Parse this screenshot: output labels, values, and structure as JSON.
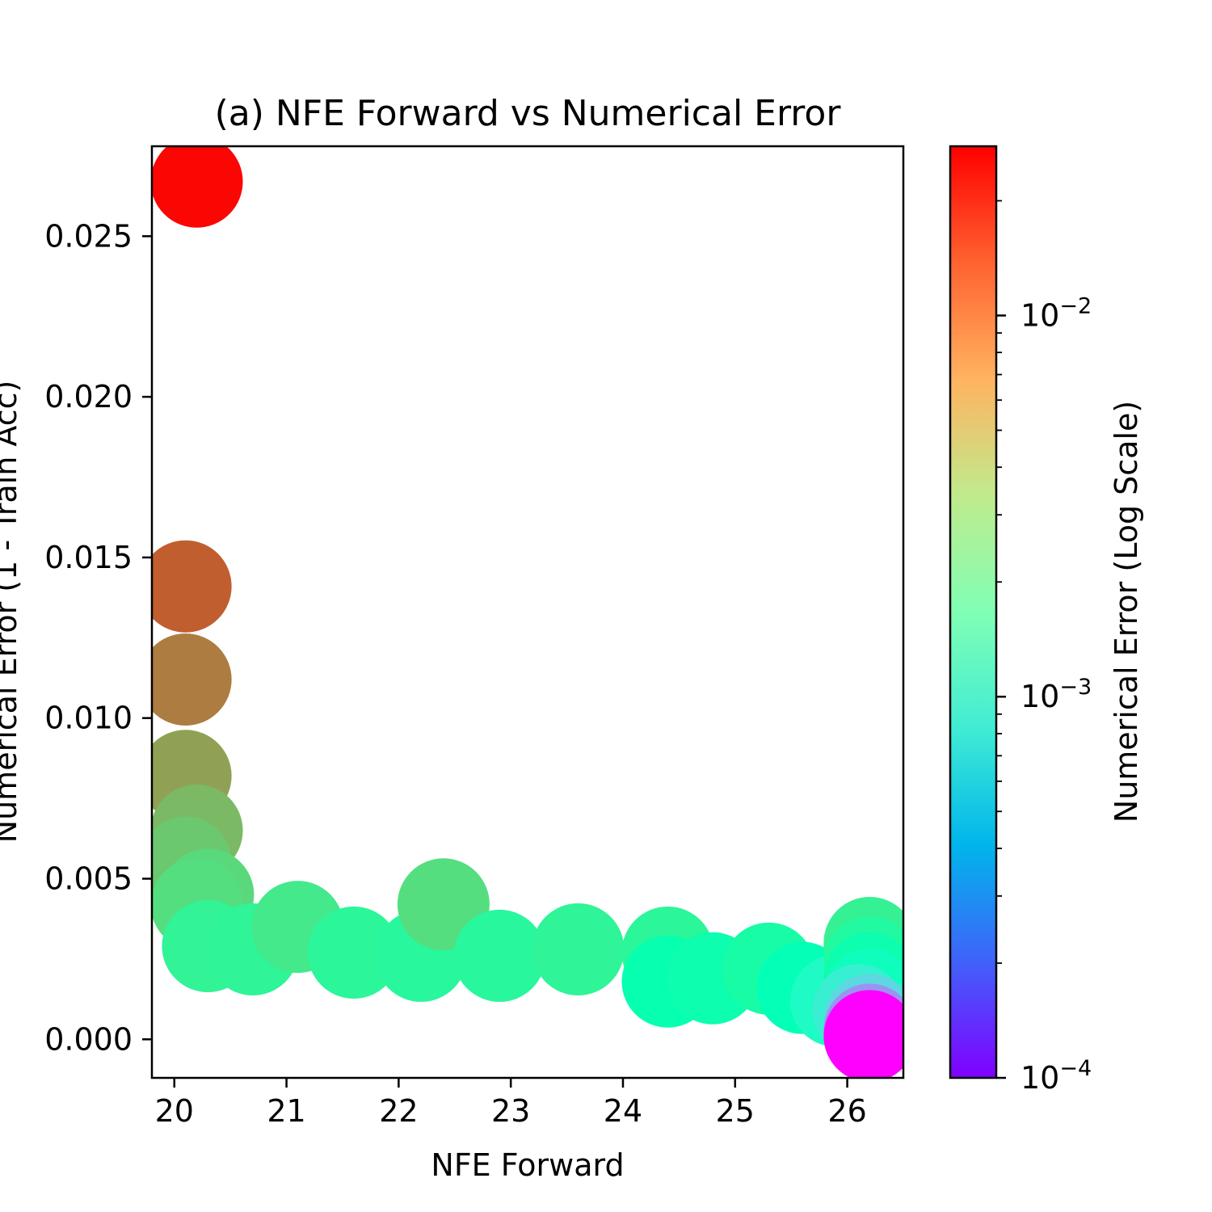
{
  "chart_data": {
    "type": "scatter",
    "title": "(a) NFE Forward vs Numerical Error",
    "xlabel": "NFE Forward",
    "ylabel": "Numerical Error (1 - Train Acc)",
    "xlim": [
      19.8,
      26.5
    ],
    "ylim": [
      -0.0012,
      0.0278
    ],
    "xticks": [
      20,
      21,
      22,
      23,
      24,
      25,
      26
    ],
    "yticks": [
      0.0,
      0.005,
      0.01,
      0.015,
      0.02,
      0.025
    ],
    "xtick_labels": [
      "20",
      "21",
      "22",
      "23",
      "24",
      "25",
      "26"
    ],
    "ytick_labels": [
      "0.000",
      "0.005",
      "0.010",
      "0.015",
      "0.020",
      "0.025"
    ],
    "grid": false,
    "colorbar": {
      "label": "Numerical Error (Log Scale)",
      "scale": "log",
      "range": [
        0.0001,
        0.0278
      ],
      "colormap": "rainbow",
      "ticks": [
        {
          "value": 0.0001,
          "base": "10",
          "exp": "−4"
        },
        {
          "value": 0.001,
          "base": "10",
          "exp": "−3"
        },
        {
          "value": 0.01,
          "base": "10",
          "exp": "−2"
        }
      ]
    },
    "points": [
      {
        "x": 20.2,
        "y": 0.0267
      },
      {
        "x": 20.1,
        "y": 0.0141
      },
      {
        "x": 20.1,
        "y": 0.0112
      },
      {
        "x": 20.1,
        "y": 0.0082
      },
      {
        "x": 20.2,
        "y": 0.0065
      },
      {
        "x": 20.1,
        "y": 0.0055
      },
      {
        "x": 20.3,
        "y": 0.0045
      },
      {
        "x": 20.2,
        "y": 0.0042
      },
      {
        "x": 20.3,
        "y": 0.0029
      },
      {
        "x": 20.7,
        "y": 0.0028
      },
      {
        "x": 21.1,
        "y": 0.0035
      },
      {
        "x": 21.6,
        "y": 0.0027
      },
      {
        "x": 22.2,
        "y": 0.0026
      },
      {
        "x": 22.4,
        "y": 0.0042
      },
      {
        "x": 22.9,
        "y": 0.0026
      },
      {
        "x": 23.6,
        "y": 0.0028
      },
      {
        "x": 24.4,
        "y": 0.0027
      },
      {
        "x": 24.4,
        "y": 0.0018
      },
      {
        "x": 24.8,
        "y": 0.0019
      },
      {
        "x": 25.3,
        "y": 0.0022
      },
      {
        "x": 25.6,
        "y": 0.0016
      },
      {
        "x": 25.9,
        "y": 0.0012
      },
      {
        "x": 26.2,
        "y": 0.003
      },
      {
        "x": 26.2,
        "y": 0.0024
      },
      {
        "x": 26.2,
        "y": 0.0019
      },
      {
        "x": 26.2,
        "y": 0.0014
      },
      {
        "x": 26.1,
        "y": 0.0009
      },
      {
        "x": 26.2,
        "y": 0.0006
      },
      {
        "x": 26.2,
        "y": 0.0003
      },
      {
        "x": 26.2,
        "y": 0.0001
      }
    ]
  }
}
